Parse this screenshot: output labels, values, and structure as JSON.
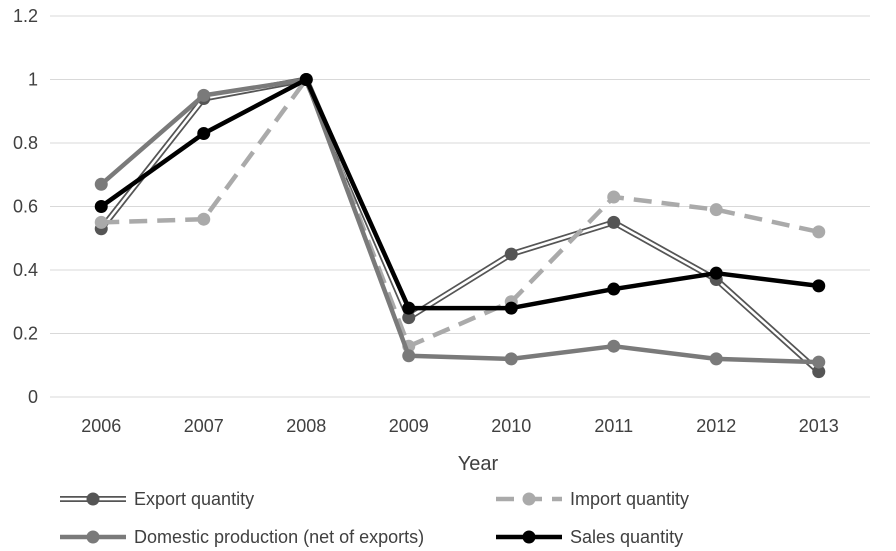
{
  "chart_data": {
    "type": "line",
    "title": "",
    "xlabel": "Year",
    "ylabel": "",
    "categories": [
      "2006",
      "2007",
      "2008",
      "2009",
      "2010",
      "2011",
      "2012",
      "2013"
    ],
    "ylim": [
      0,
      1.2
    ],
    "yticks": [
      0,
      0.2,
      0.4,
      0.6,
      0.8,
      1,
      1.2
    ],
    "ytick_labels": [
      "0",
      "0.2",
      "0.4",
      "0.6",
      "0.8",
      "1",
      "1.2"
    ],
    "grid": true,
    "legend_position": "bottom",
    "series": [
      {
        "name": "Export quantity",
        "style": "double",
        "color": "#555555",
        "values": [
          0.53,
          0.94,
          1.0,
          0.25,
          0.45,
          0.55,
          0.37,
          0.08
        ]
      },
      {
        "name": "Import quantity",
        "style": "dashed",
        "color": "#aaaaaa",
        "values": [
          0.55,
          0.56,
          1.0,
          0.16,
          0.3,
          0.63,
          0.59,
          0.52
        ]
      },
      {
        "name": "Domestic production (net of exports)",
        "style": "solid",
        "color": "#7a7a7a",
        "values": [
          0.67,
          0.95,
          1.0,
          0.13,
          0.12,
          0.16,
          0.12,
          0.11
        ]
      },
      {
        "name": "Sales quantity",
        "style": "solid",
        "color": "#000000",
        "values": [
          0.6,
          0.83,
          1.0,
          0.28,
          0.28,
          0.34,
          0.39,
          0.35
        ]
      }
    ]
  }
}
